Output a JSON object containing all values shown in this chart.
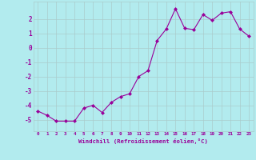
{
  "x": [
    0,
    1,
    2,
    3,
    4,
    5,
    6,
    7,
    8,
    9,
    10,
    11,
    12,
    13,
    14,
    15,
    16,
    17,
    18,
    19,
    20,
    21,
    22,
    23
  ],
  "y": [
    -4.4,
    -4.7,
    -5.1,
    -5.1,
    -5.1,
    -4.2,
    -4.0,
    -4.5,
    -3.8,
    -3.4,
    -3.2,
    -2.0,
    -1.6,
    0.5,
    1.3,
    2.7,
    1.35,
    1.25,
    2.3,
    1.9,
    2.4,
    2.5,
    1.3,
    0.8
  ],
  "xlim": [
    -0.5,
    23.5
  ],
  "ylim": [
    -5.8,
    3.2
  ],
  "yticks": [
    -5,
    -4,
    -3,
    -2,
    -1,
    0,
    1,
    2
  ],
  "xtick_labels": [
    "0",
    "1",
    "2",
    "3",
    "4",
    "5",
    "6",
    "7",
    "8",
    "9",
    "10",
    "11",
    "12",
    "13",
    "14",
    "15",
    "16",
    "17",
    "18",
    "19",
    "20",
    "21",
    "22",
    "23"
  ],
  "line_color": "#990099",
  "marker_color": "#990099",
  "bg_color": "#b2ebee",
  "grid_color": "#aacccc",
  "xlabel": "Windchill (Refroidissement éolien,°C)",
  "label_color": "#990099",
  "tick_color": "#990099",
  "font": "monospace"
}
